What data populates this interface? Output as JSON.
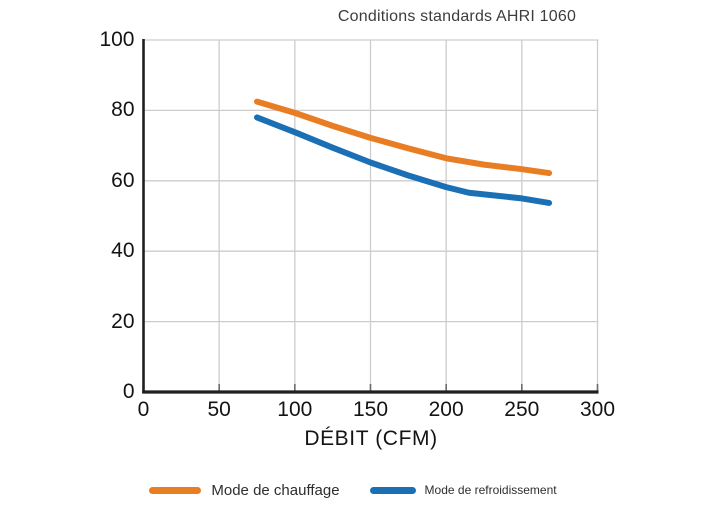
{
  "chart": {
    "title": "Conditions standards AHRI 1060",
    "xlabel": "DÉBIT (CFM)"
  },
  "legend": {
    "items": [
      {
        "label": "Mode de chauffage",
        "color": "#E87D23"
      },
      {
        "label": "Mode de refroidissement",
        "color": "#1B6FB5"
      }
    ]
  },
  "chart_data": {
    "type": "line",
    "title": "Conditions standards AHRI 1060",
    "xlabel": "DÉBIT (CFM)",
    "ylabel": "",
    "xlim": [
      0,
      300
    ],
    "ylim": [
      0,
      100
    ],
    "xticks": [
      0,
      50,
      100,
      150,
      200,
      250,
      300
    ],
    "yticks": [
      0,
      20,
      40,
      60,
      80,
      100
    ],
    "grid": true,
    "legend_position": "bottom",
    "series": [
      {
        "name": "Mode de chauffage",
        "color": "#E87D23",
        "x": [
          75,
          100,
          125,
          150,
          175,
          200,
          225,
          250,
          268
        ],
        "y": [
          82.5,
          79.3,
          75.6,
          72.2,
          69.2,
          66.4,
          64.6,
          63.3,
          62.2
        ]
      },
      {
        "name": "Mode de refroidissement",
        "color": "#1B6FB5",
        "x": [
          75,
          100,
          125,
          150,
          175,
          200,
          215,
          250,
          268
        ],
        "y": [
          78.0,
          73.8,
          69.4,
          65.2,
          61.5,
          58.2,
          56.6,
          55.0,
          53.7
        ]
      }
    ]
  }
}
